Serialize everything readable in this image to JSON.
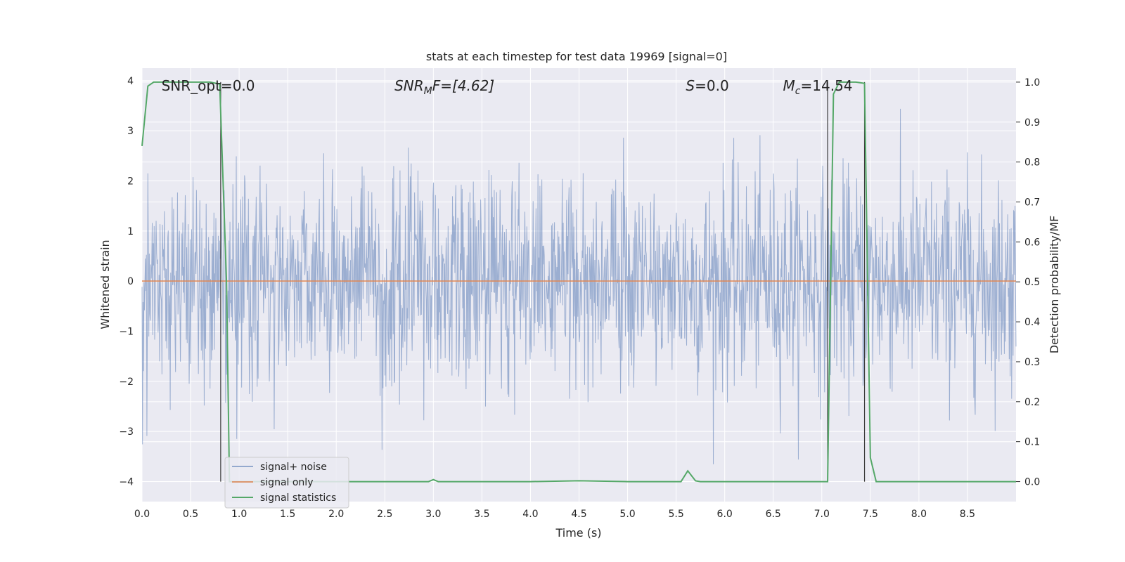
{
  "chart_data": {
    "type": "line",
    "title": "stats at each timestep for test data 19969 [signal=0]",
    "xlabel": "Time (s)",
    "ylabel": "Whitened strain",
    "y2label": "Detection probability/MF",
    "xlim": [
      0.0,
      9.0
    ],
    "ylim": [
      -4.4,
      4.25
    ],
    "y2lim": [
      -0.05,
      1.035
    ],
    "xticks": [
      0.0,
      0.5,
      1.0,
      1.5,
      2.0,
      2.5,
      3.0,
      3.5,
      4.0,
      4.5,
      5.0,
      5.5,
      6.0,
      6.5,
      7.0,
      7.5,
      8.0,
      8.5
    ],
    "xtick_labels": [
      "0.0",
      "0.5",
      "1.0",
      "1.5",
      "2.0",
      "2.5",
      "3.0",
      "3.5",
      "4.0",
      "4.5",
      "5.0",
      "5.5",
      "6.0",
      "6.5",
      "7.0",
      "7.5",
      "8.0",
      "8.5"
    ],
    "yticks": [
      -4,
      -3,
      -2,
      -1,
      0,
      1,
      2,
      3,
      4
    ],
    "ytick_labels": [
      "−4",
      "−3",
      "−2",
      "−1",
      "0",
      "1",
      "2",
      "3",
      "4"
    ],
    "y2ticks": [
      0.0,
      0.1,
      0.2,
      0.3,
      0.4,
      0.5,
      0.6,
      0.7,
      0.8,
      0.9,
      1.0
    ],
    "y2tick_labels": [
      "0.0",
      "0.1",
      "0.2",
      "0.3",
      "0.4",
      "0.5",
      "0.6",
      "0.7",
      "0.8",
      "0.9",
      "1.0"
    ],
    "grid": true,
    "legend_position": "lower-left",
    "annotations": [
      {
        "label": "SNR_opt=0.0",
        "x": 0.2,
        "y": 3.9
      },
      {
        "label": "SNR",
        "sub": "M",
        "rest": "F=[4.62]",
        "x": 2.6,
        "y": 3.9,
        "italic": true
      },
      {
        "label": "S",
        "rest": "=0.0",
        "x": 5.6,
        "y": 3.9,
        "italic": true
      },
      {
        "label": "M",
        "sub": "c",
        "rest": "=14.54",
        "x": 6.6,
        "y": 3.9,
        "italic": true
      }
    ],
    "vlines": [
      0.81,
      7.06,
      7.44
    ],
    "series": [
      {
        "name": "signal+ noise",
        "color": "#4c72b0",
        "axis": "left",
        "duration": 9.0,
        "samples": 1800,
        "noise_sigma": 1.05,
        "note_envelope_max": 3.9,
        "min_observed": -3.7
      },
      {
        "name": "signal only",
        "color": "#dd8452",
        "axis": "left",
        "x": [
          0.0,
          9.0
        ],
        "y": [
          0.0,
          0.0
        ]
      },
      {
        "name": "signal statistics",
        "color": "#55a868",
        "axis": "right",
        "x": [
          0.0,
          0.06,
          0.12,
          0.2,
          0.3,
          0.5,
          0.7,
          0.8,
          0.87,
          0.9,
          1.0,
          1.5,
          2.0,
          2.5,
          2.95,
          3.0,
          3.05,
          3.5,
          4.0,
          4.5,
          5.0,
          5.55,
          5.62,
          5.7,
          5.75,
          6.0,
          6.5,
          7.0,
          7.06,
          7.12,
          7.18,
          7.25,
          7.35,
          7.44,
          7.5,
          7.56,
          8.0,
          8.5,
          9.0
        ],
        "y": [
          0.84,
          0.99,
          1.0,
          1.0,
          1.0,
          1.0,
          1.0,
          0.995,
          0.5,
          0.0,
          0.0,
          0.0,
          0.0,
          0.0,
          0.0,
          0.005,
          0.0,
          0.0,
          0.0,
          0.002,
          0.0,
          0.0,
          0.027,
          0.002,
          0.0,
          0.0,
          0.0,
          0.0,
          0.0,
          0.97,
          1.0,
          1.0,
          1.0,
          0.997,
          0.06,
          0.0,
          0.0,
          0.0,
          0.0
        ]
      }
    ]
  }
}
